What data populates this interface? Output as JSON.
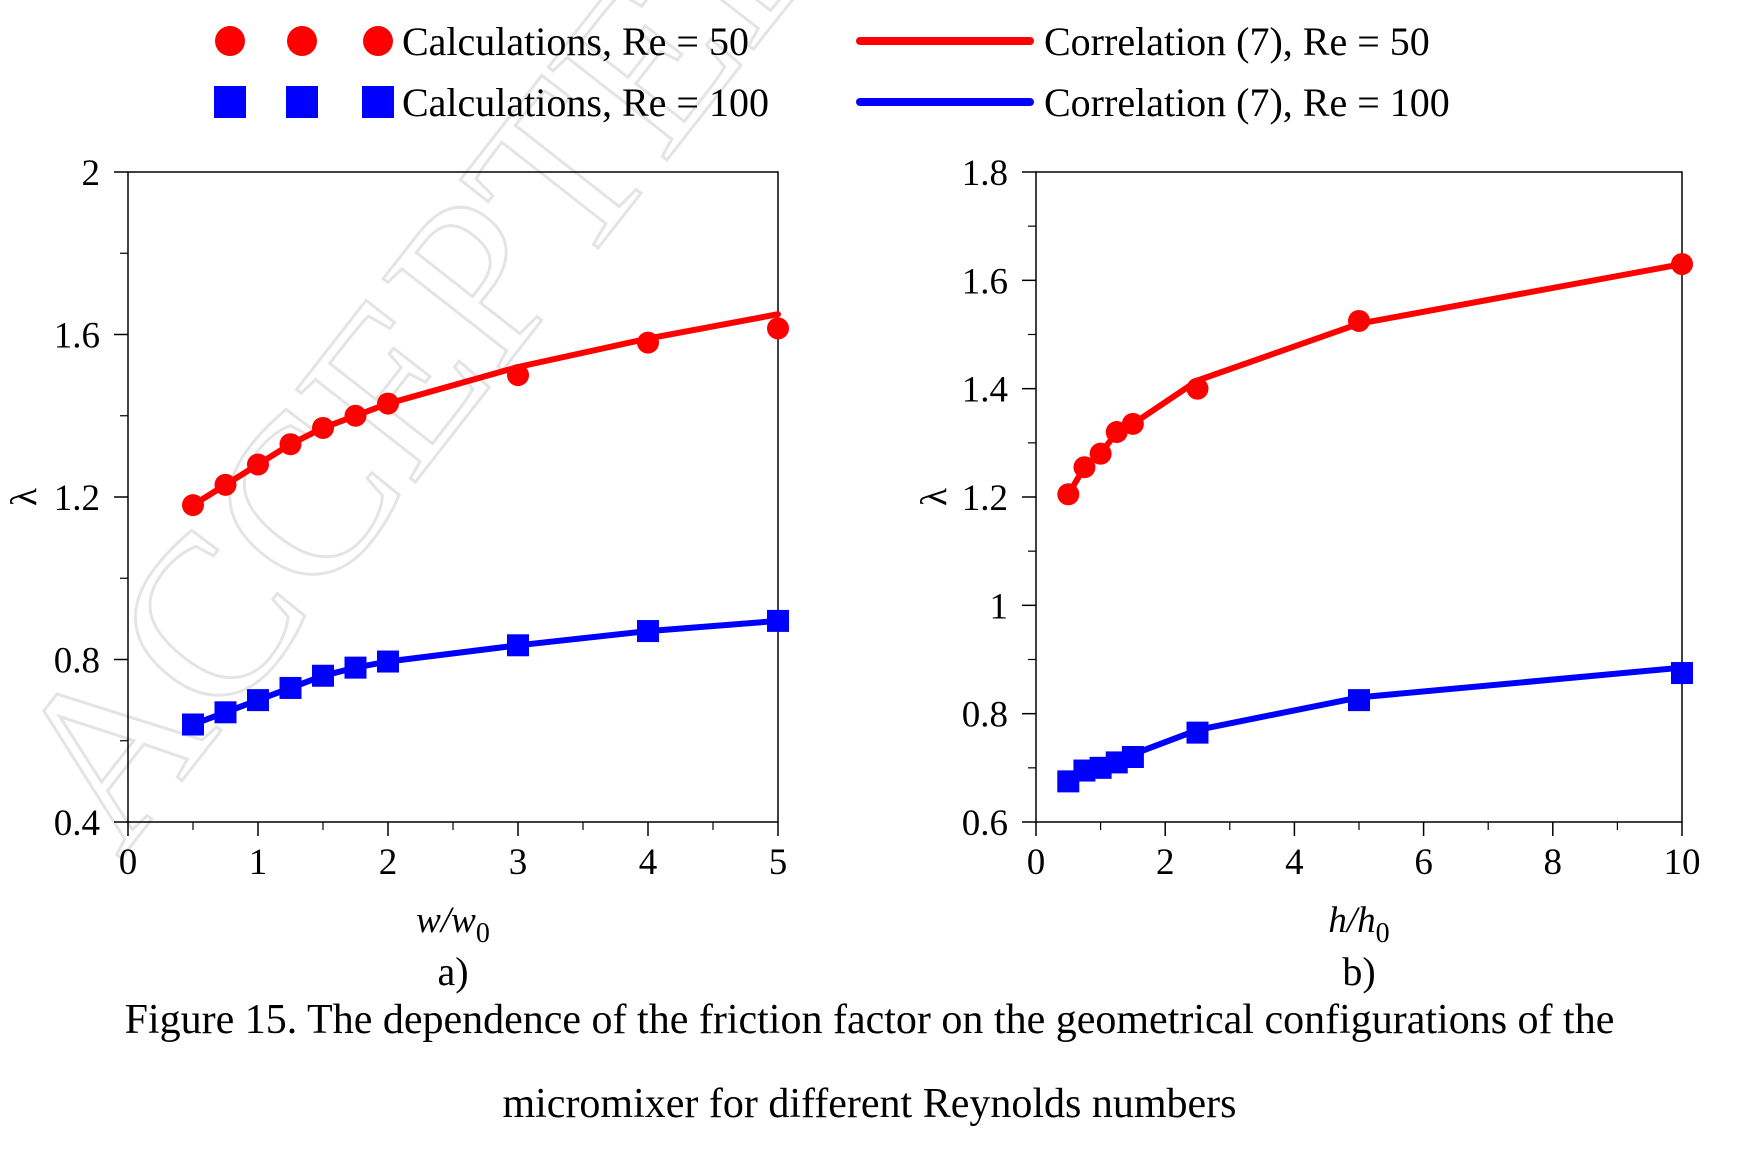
{
  "watermark": "ACCEPTED MANUSCRIPT",
  "legend": {
    "items": [
      {
        "label": "Calculations, Re = 50",
        "color": "#ff0000",
        "marker": "circle"
      },
      {
        "label": "Correlation (7), Re = 50",
        "color": "#ff0000",
        "marker": "line"
      },
      {
        "label": "Calculations, Re = 100",
        "color": "#0000ff",
        "marker": "square"
      },
      {
        "label": "Correlation (7), Re = 100",
        "color": "#0000ff",
        "marker": "line"
      }
    ]
  },
  "caption": {
    "line1": "Figure 15. The dependence of the friction factor on the geometrical configurations of the",
    "line2": "micromixer for different Reynolds numbers"
  },
  "chart_data": [
    {
      "type": "scatter",
      "panel_label": "a)",
      "xlabel_var": "w/w",
      "xlabel_sub": "0",
      "ylabel": "λ",
      "xlim": [
        0,
        5
      ],
      "ylim": [
        0.4,
        2
      ],
      "xticks": [
        0,
        1,
        2,
        3,
        4,
        5
      ],
      "xtick_labels": [
        "0",
        "1",
        "2",
        "3",
        "4",
        "5"
      ],
      "xminor": [
        0.5,
        1.5,
        2.5,
        3.5,
        4.5
      ],
      "yticks": [
        0.4,
        0.8,
        1.2,
        1.6,
        2
      ],
      "ytick_labels": [
        "0.4",
        "0.8",
        "1.2",
        "1.6",
        "2"
      ],
      "yminor": [
        0.6,
        1.0,
        1.4,
        1.8
      ],
      "grid": false,
      "series": [
        {
          "name": "Calculations, Re = 50",
          "kind": "markers",
          "marker": "circle",
          "color": "#ff0000",
          "x": [
            0.5,
            0.75,
            1,
            1.25,
            1.5,
            1.75,
            2,
            3,
            4,
            5
          ],
          "y": [
            1.18,
            1.23,
            1.28,
            1.33,
            1.37,
            1.4,
            1.43,
            1.5,
            1.58,
            1.615
          ]
        },
        {
          "name": "Correlation (7), Re = 50",
          "kind": "line",
          "color": "#ff0000",
          "x": [
            0.5,
            0.75,
            1,
            1.25,
            1.5,
            1.75,
            2,
            3,
            4,
            5
          ],
          "y": [
            1.18,
            1.23,
            1.28,
            1.33,
            1.37,
            1.4,
            1.43,
            1.52,
            1.59,
            1.65
          ]
        },
        {
          "name": "Calculations, Re = 100",
          "kind": "markers",
          "marker": "square",
          "color": "#0000ff",
          "x": [
            0.5,
            0.75,
            1,
            1.25,
            1.5,
            1.75,
            2,
            3,
            4,
            5
          ],
          "y": [
            0.64,
            0.67,
            0.7,
            0.73,
            0.76,
            0.78,
            0.795,
            0.835,
            0.87,
            0.895
          ]
        },
        {
          "name": "Correlation (7), Re = 100",
          "kind": "line",
          "color": "#0000ff",
          "x": [
            0.5,
            0.75,
            1,
            1.25,
            1.5,
            1.75,
            2,
            3,
            4,
            5
          ],
          "y": [
            0.64,
            0.67,
            0.7,
            0.73,
            0.76,
            0.78,
            0.795,
            0.835,
            0.87,
            0.895
          ]
        }
      ]
    },
    {
      "type": "scatter",
      "panel_label": "b)",
      "xlabel_var": "h/h",
      "xlabel_sub": "0",
      "ylabel": "λ",
      "xlim": [
        0,
        10
      ],
      "ylim": [
        0.6,
        1.8
      ],
      "xticks": [
        0,
        2,
        4,
        6,
        8,
        10
      ],
      "xtick_labels": [
        "0",
        "2",
        "4",
        "6",
        "8",
        "10"
      ],
      "xminor": [
        1,
        3,
        5,
        7,
        9
      ],
      "yticks": [
        0.6,
        0.8,
        1,
        1.2,
        1.4,
        1.6,
        1.8
      ],
      "ytick_labels": [
        "0.6",
        "0.8",
        "1",
        "1.2",
        "1.4",
        "1.6",
        "1.8"
      ],
      "yminor": [
        0.7,
        0.9,
        1.1,
        1.3,
        1.5,
        1.7
      ],
      "grid": false,
      "series": [
        {
          "name": "Calculations, Re = 50",
          "kind": "markers",
          "marker": "circle",
          "color": "#ff0000",
          "x": [
            0.5,
            0.75,
            1,
            1.25,
            1.5,
            2.5,
            5,
            10
          ],
          "y": [
            1.205,
            1.255,
            1.28,
            1.32,
            1.335,
            1.4,
            1.525,
            1.63
          ]
        },
        {
          "name": "Correlation (7), Re = 50",
          "kind": "line",
          "color": "#ff0000",
          "x": [
            0.5,
            0.75,
            1,
            1.25,
            1.5,
            2.5,
            5,
            10
          ],
          "y": [
            1.205,
            1.255,
            1.28,
            1.32,
            1.335,
            1.415,
            1.52,
            1.63
          ]
        },
        {
          "name": "Calculations, Re = 100",
          "kind": "markers",
          "marker": "square",
          "color": "#0000ff",
          "x": [
            0.5,
            0.75,
            1,
            1.25,
            1.5,
            2.5,
            5,
            10
          ],
          "y": [
            0.675,
            0.695,
            0.7,
            0.71,
            0.72,
            0.765,
            0.825,
            0.875
          ]
        },
        {
          "name": "Correlation (7), Re = 100",
          "kind": "line",
          "color": "#0000ff",
          "x": [
            0.5,
            0.75,
            1,
            1.25,
            1.5,
            2.5,
            5,
            10
          ],
          "y": [
            0.675,
            0.69,
            0.7,
            0.71,
            0.725,
            0.77,
            0.83,
            0.885
          ]
        }
      ]
    }
  ]
}
